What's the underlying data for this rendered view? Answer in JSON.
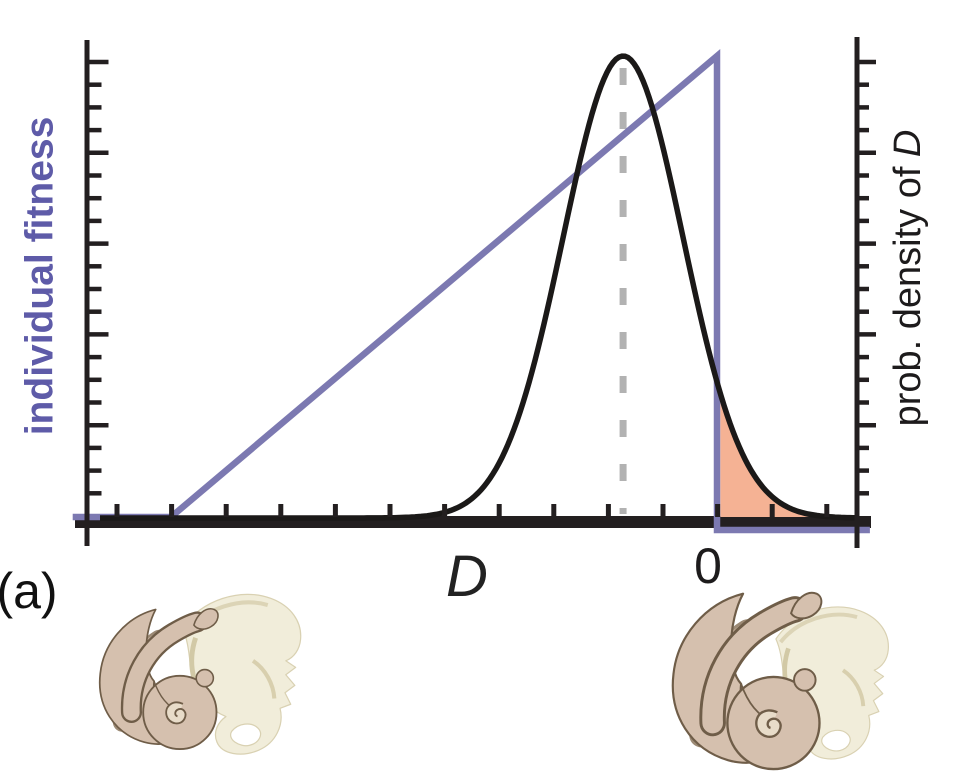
{
  "panel": {
    "label": "(a)"
  },
  "axes": {
    "left": {
      "label": "individual fitness",
      "color": "#5e5ba8"
    },
    "right": {
      "label_prefix": "prob. density of",
      "label_variable": "D",
      "color": "#1d1b1c"
    },
    "x": {
      "label": "D",
      "zero_tick_label": "0"
    }
  },
  "colors": {
    "fitness_line": "#7c79b1",
    "density_curve": "#1b1918",
    "mean_dash": "#b2b2b2",
    "risk_area_fill": "#f5b294",
    "axis": "#231f20",
    "fetus_skin": "#d5c0ae",
    "fetus_outline": "#6f5d48",
    "pelvis_bone": "#f1edda",
    "pelvis_shade": "#d2c9a6"
  },
  "chart_data": {
    "type": "line",
    "title": "",
    "xlabel": "D",
    "x_zero_tick_label": "0",
    "left_ylabel": "individual fitness",
    "right_ylabel": "prob. density of D",
    "x_axis_unlabeled_ticks": 14,
    "x_visible_range_in_tick_units_from_zero": [
      -11.8,
      2.8
    ],
    "grid": false,
    "legend": null,
    "series": [
      {
        "id": "fitness",
        "name": "individual fitness",
        "type": "piecewise_linear",
        "axis": "left",
        "color": "#7c79b1",
        "points": [
          [
            -11.8,
            0
          ],
          [
            -10,
            0
          ],
          [
            0,
            1
          ],
          [
            0,
            0
          ],
          [
            2.8,
            0
          ]
        ],
        "note": "fitness rises linearly with D and drops to zero at D = 0 (cliff edge)"
      },
      {
        "id": "density",
        "name": "prob. density of D",
        "type": "gaussian",
        "axis": "right",
        "color": "#1b1918",
        "mean": -1.72,
        "sd": 1.1,
        "peak": 1
      },
      {
        "id": "mean_marker",
        "name": "distribution mean",
        "type": "dashed_vline",
        "color": "#b2b2b2",
        "x": -1.72
      },
      {
        "id": "risk_area",
        "name": "shaded tail beyond cliff",
        "type": "area_under_gaussian",
        "color": "#f5b294",
        "from": 0.06,
        "to": 2.55
      }
    ]
  },
  "illustrations": [
    {
      "id": "left",
      "name": "small-neonate-in-pelvis",
      "description": "fetus with small head in maternal pelvis"
    },
    {
      "id": "right",
      "name": "large-neonate-in-pelvis",
      "description": "fetus with large head tightly fitting maternal pelvis"
    }
  ]
}
